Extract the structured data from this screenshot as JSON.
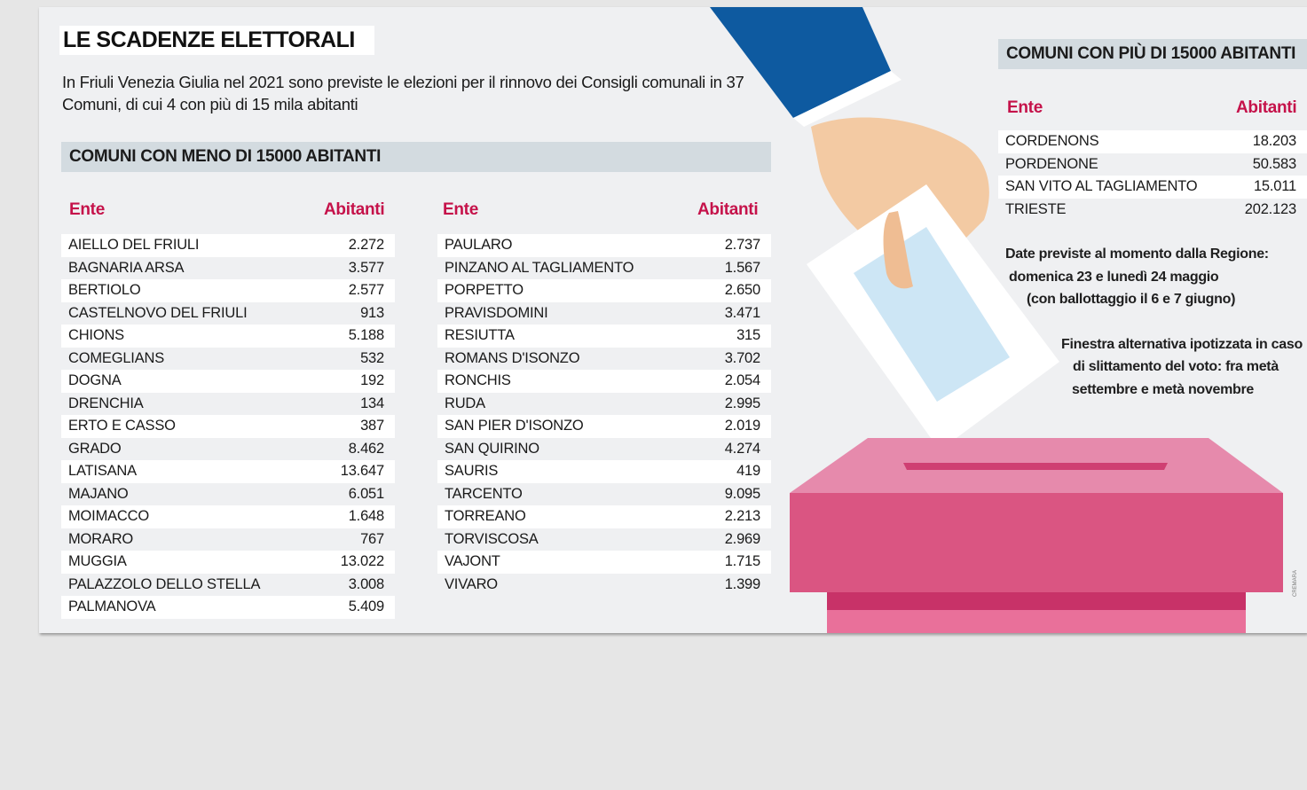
{
  "title": "LE SCADENZE ELETTORALI",
  "intro": "In Friuli Venezia Giulia nel 2021 sono previste le elezioni per il rinnovo dei Consigli comunali in 37 Comuni, di cui 4 con più di 15 mila abitanti",
  "small": {
    "heading": "COMUNI CON MENO DI 15000 ABITANTI",
    "col_ente": "Ente",
    "col_abitanti": "Abitanti",
    "left": [
      {
        "ente": "AIELLO DEL FRIULI",
        "abitanti": "2.272"
      },
      {
        "ente": "BAGNARIA ARSA",
        "abitanti": "3.577"
      },
      {
        "ente": "BERTIOLO",
        "abitanti": "2.577"
      },
      {
        "ente": "CASTELNOVO DEL FRIULI",
        "abitanti": "913"
      },
      {
        "ente": "CHIONS",
        "abitanti": "5.188"
      },
      {
        "ente": "COMEGLIANS",
        "abitanti": "532"
      },
      {
        "ente": "DOGNA",
        "abitanti": "192"
      },
      {
        "ente": "DRENCHIA",
        "abitanti": "134"
      },
      {
        "ente": "ERTO E CASSO",
        "abitanti": "387"
      },
      {
        "ente": "GRADO",
        "abitanti": "8.462"
      },
      {
        "ente": "LATISANA",
        "abitanti": "13.647"
      },
      {
        "ente": "MAJANO",
        "abitanti": "6.051"
      },
      {
        "ente": "MOIMACCO",
        "abitanti": "1.648"
      },
      {
        "ente": "MORARO",
        "abitanti": "767"
      },
      {
        "ente": "MUGGIA",
        "abitanti": "13.022"
      },
      {
        "ente": "PALAZZOLO DELLO STELLA",
        "abitanti": "3.008"
      },
      {
        "ente": "PALMANOVA",
        "abitanti": "5.409"
      }
    ],
    "right": [
      {
        "ente": "PAULARO",
        "abitanti": "2.737"
      },
      {
        "ente": "PINZANO AL TAGLIAMENTO",
        "abitanti": "1.567"
      },
      {
        "ente": "PORPETTO",
        "abitanti": "2.650"
      },
      {
        "ente": "PRAVISDOMINI",
        "abitanti": "3.471"
      },
      {
        "ente": "RESIUTTA",
        "abitanti": "315"
      },
      {
        "ente": "ROMANS D'ISONZO",
        "abitanti": "3.702"
      },
      {
        "ente": "RONCHIS",
        "abitanti": "2.054"
      },
      {
        "ente": "RUDA",
        "abitanti": "2.995"
      },
      {
        "ente": "SAN PIER D'ISONZO",
        "abitanti": "2.019"
      },
      {
        "ente": "SAN QUIRINO",
        "abitanti": "4.274"
      },
      {
        "ente": "SAURIS",
        "abitanti": "419"
      },
      {
        "ente": "TARCENTO",
        "abitanti": "9.095"
      },
      {
        "ente": "TORREANO",
        "abitanti": "2.213"
      },
      {
        "ente": "TORVISCOSA",
        "abitanti": "2.969"
      },
      {
        "ente": "VAJONT",
        "abitanti": "1.715"
      },
      {
        "ente": "VIVARO",
        "abitanti": "1.399"
      }
    ]
  },
  "large": {
    "heading": "COMUNI CON PIÙ DI 15000 ABITANTI",
    "col_ente": "Ente",
    "col_abitanti": "Abitanti",
    "rows": [
      {
        "ente": "CORDENONS",
        "abitanti": "18.203"
      },
      {
        "ente": "PORDENONE",
        "abitanti": "50.583"
      },
      {
        "ente": "SAN VITO AL TAGLIAMENTO",
        "abitanti": "15.011"
      },
      {
        "ente": "TRIESTE",
        "abitanti": "202.123"
      }
    ]
  },
  "notes": {
    "dates_line1": "Date previste al momento dalla Regione:",
    "dates_line2": "domenica 23 e lunedì 24 maggio",
    "dates_line3": "(con ballottaggio il 6 e 7 giugno)",
    "alt_line1": "Finestra alternativa ipotizzata in caso",
    "alt_line2": "di slittamento del voto: fra metà",
    "alt_line3": "settembre e metà novembre"
  },
  "credit": "CREMARA",
  "colors": {
    "accent": "#c5124a",
    "section_bar": "#d3dbe0",
    "ballot_box": "#d9527f",
    "sleeve": "#0e5aa0"
  }
}
